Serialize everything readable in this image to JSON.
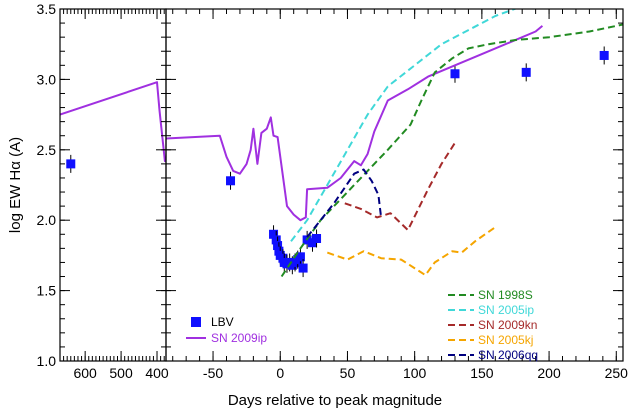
{
  "chart_data": {
    "type": "line",
    "xlabel": "Days relative to peak magnitude",
    "ylabel": "log EW Hα (A)",
    "ylim": [
      1.0,
      3.5
    ],
    "y_ticks": [
      "1.0",
      "1.5",
      "2.0",
      "2.5",
      "3.0",
      "3.5"
    ],
    "panels": [
      {
        "name": "left",
        "xlim": [
          670,
          375
        ],
        "x_ticks": [
          "600",
          "500",
          "400"
        ]
      },
      {
        "name": "right",
        "xlim": [
          -85,
          255
        ],
        "x_ticks": [
          "-50",
          "0",
          "50",
          "100",
          "150",
          "200",
          "250"
        ]
      }
    ],
    "legend_left": [
      {
        "label": "LBV",
        "color": "#1010ff",
        "marker": "square"
      },
      {
        "label": "SN 2009ip",
        "color": "#a030e0",
        "marker": "line"
      }
    ],
    "legend_right": [
      {
        "label": "SN 1998S",
        "color": "#228b22"
      },
      {
        "label": "SN 2005ip",
        "color": "#40d8d8"
      },
      {
        "label": "SN 2009kn",
        "color": "#a52a2a"
      },
      {
        "label": "SN 2005kj",
        "color": "#f5a500"
      },
      {
        "label": "SN 2006qq",
        "color": "#000080"
      }
    ],
    "series": [
      {
        "name": "LBV",
        "style": "markers",
        "color": "#1010ff",
        "points": [
          {
            "panel": "left",
            "x": 640,
            "y": 2.4
          },
          {
            "panel": "right",
            "x": -37,
            "y": 2.28
          },
          {
            "panel": "right",
            "x": -5,
            "y": 1.9
          },
          {
            "panel": "right",
            "x": -3,
            "y": 1.86
          },
          {
            "panel": "right",
            "x": -2,
            "y": 1.82
          },
          {
            "panel": "right",
            "x": -1,
            "y": 1.78
          },
          {
            "panel": "right",
            "x": 0,
            "y": 1.75
          },
          {
            "panel": "right",
            "x": 2,
            "y": 1.73
          },
          {
            "panel": "right",
            "x": 3,
            "y": 1.7
          },
          {
            "panel": "right",
            "x": 5,
            "y": 1.69
          },
          {
            "panel": "right",
            "x": 7,
            "y": 1.7
          },
          {
            "panel": "right",
            "x": 9,
            "y": 1.68
          },
          {
            "panel": "right",
            "x": 11,
            "y": 1.7
          },
          {
            "panel": "right",
            "x": 13,
            "y": 1.72
          },
          {
            "panel": "right",
            "x": 15,
            "y": 1.74
          },
          {
            "panel": "right",
            "x": 17,
            "y": 1.66
          },
          {
            "panel": "right",
            "x": 20,
            "y": 1.86
          },
          {
            "panel": "right",
            "x": 24,
            "y": 1.84
          },
          {
            "panel": "right",
            "x": 27,
            "y": 1.87
          },
          {
            "panel": "right",
            "x": 130,
            "y": 3.04
          },
          {
            "panel": "right",
            "x": 183,
            "y": 3.05
          },
          {
            "panel": "right",
            "x": 241,
            "y": 3.17
          }
        ]
      },
      {
        "name": "SN 2009ip",
        "style": "solid",
        "color": "#a030e0",
        "segments": [
          {
            "panel": "left",
            "x": [
              670,
              400,
              393,
              378,
              375
            ],
            "y": [
              2.75,
              2.98,
              2.78,
              2.42,
              2.42
            ]
          },
          {
            "panel": "right",
            "x": [
              -85,
              -45,
              -40,
              -35,
              -30,
              -25,
              -22,
              -20,
              -17,
              -14,
              -10,
              -7,
              -5,
              -2,
              5,
              10,
              15,
              19,
              20,
              35,
              45,
              55,
              60,
              65,
              70,
              80,
              95,
              110,
              130,
              150,
              170,
              190,
              195
            ],
            "y": [
              2.58,
              2.6,
              2.45,
              2.35,
              2.33,
              2.4,
              2.5,
              2.65,
              2.4,
              2.62,
              2.65,
              2.73,
              2.6,
              2.59,
              2.1,
              2.04,
              2.0,
              2.02,
              2.22,
              2.23,
              2.3,
              2.42,
              2.39,
              2.47,
              2.63,
              2.85,
              2.93,
              3.02,
              3.1,
              3.18,
              3.26,
              3.34,
              3.38
            ]
          }
        ]
      },
      {
        "name": "SN 1998S",
        "style": "dashed",
        "color": "#228b22",
        "segments": [
          {
            "panel": "right",
            "x": [
              1,
              15,
              30,
              50,
              65,
              80,
              97,
              105,
              115,
              128,
              140,
              155,
              175,
              200,
              230,
              255
            ],
            "y": [
              1.6,
              1.8,
              2.0,
              2.2,
              2.35,
              2.5,
              2.68,
              2.85,
              3.05,
              3.15,
              3.22,
              3.25,
              3.28,
              3.3,
              3.34,
              3.39
            ]
          }
        ]
      },
      {
        "name": "SN 2005ip",
        "style": "dashed",
        "color": "#40d8d8",
        "segments": [
          {
            "panel": "right",
            "x": [
              8,
              20,
              35,
              50,
              65,
              80,
              100,
              120,
              140,
              160,
              180
            ],
            "y": [
              1.85,
              2.0,
              2.25,
              2.5,
              2.75,
              2.95,
              3.1,
              3.25,
              3.35,
              3.45,
              3.52
            ]
          }
        ]
      },
      {
        "name": "SN 2009kn",
        "style": "dashed",
        "color": "#a52a2a",
        "segments": [
          {
            "panel": "right",
            "x": [
              48,
              60,
              72,
              82,
              95,
              110,
              120,
              130
            ],
            "y": [
              2.12,
              2.08,
              2.02,
              2.05,
              1.93,
              2.22,
              2.4,
              2.55
            ]
          }
        ]
      },
      {
        "name": "SN 2005kj",
        "style": "dashed",
        "color": "#f5a500",
        "segments": [
          {
            "panel": "right",
            "x": [
              35,
              50,
              62,
              75,
              90,
              108,
              115,
              128,
              135,
              145,
              160
            ],
            "y": [
              1.77,
              1.72,
              1.78,
              1.73,
              1.72,
              1.61,
              1.7,
              1.78,
              1.77,
              1.85,
              1.95
            ]
          }
        ]
      },
      {
        "name": "SN 2006qq",
        "style": "dashed",
        "color": "#000080",
        "segments": [
          {
            "panel": "right",
            "x": [
              20,
              30,
              40,
              50,
              55,
              62,
              68,
              73,
              75
            ],
            "y": [
              1.88,
              2.0,
              2.12,
              2.26,
              2.33,
              2.36,
              2.28,
              2.18,
              2.02
            ]
          }
        ]
      }
    ]
  }
}
